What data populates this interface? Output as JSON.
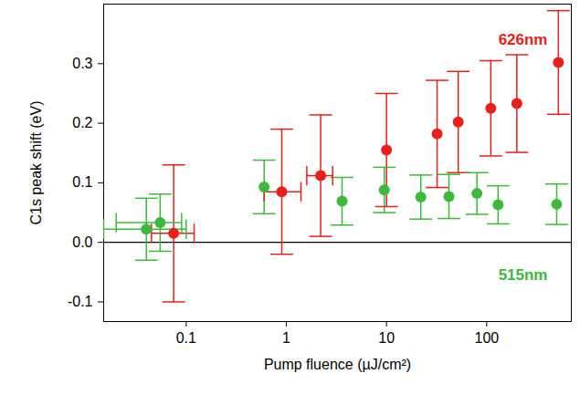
{
  "chart_data": {
    "type": "scatter",
    "x_label": "Pump fluence (µJ/cm²)",
    "y_label": "C1s peak shift (eV)",
    "log": "x",
    "xlim": [
      0.015,
      700
    ],
    "xticks": [
      0.1,
      1,
      10,
      100
    ],
    "ylim": [
      -0.133,
      0.4
    ],
    "yticks": [
      -0.1,
      {
        "value": 0,
        "label": "0.0"
      },
      0.1,
      0.2,
      0.3
    ],
    "series": [
      {
        "name": "626nm",
        "color": "#e8201c",
        "marker": "circle",
        "x": [
          0.075,
          0.9,
          2.2,
          10,
          32,
          52,
          110,
          200,
          520
        ],
        "values": [
          0.015,
          0.085,
          0.112,
          0.155,
          0.182,
          0.202,
          0.225,
          0.233,
          0.302
        ],
        "yerr": [
          0.115,
          0.105,
          0.102,
          0.095,
          0.09,
          0.085,
          0.08,
          0.082,
          0.087
        ],
        "xerr": [
          [
            0.045,
            0.12
          ],
          [
            0.6,
            1.4
          ],
          [
            1.6,
            2.9
          ],
          null,
          null,
          null,
          null,
          null,
          null
        ]
      },
      {
        "name": "515nm",
        "color": "#3cb83c",
        "marker": "circle",
        "x": [
          0.04,
          0.055,
          0.6,
          3.6,
          9.5,
          22,
          42,
          80,
          130,
          500
        ],
        "values": [
          0.022,
          0.033,
          0.093,
          0.069,
          0.088,
          0.076,
          0.077,
          0.082,
          0.063,
          0.064
        ],
        "yerr": [
          0.052,
          0.048,
          0.045,
          0.04,
          0.038,
          0.037,
          0.037,
          0.035,
          0.032,
          0.034
        ],
        "xerr": [
          [
            0.015,
            0.1
          ],
          [
            0.02,
            0.09
          ],
          null,
          null,
          null,
          null,
          null,
          null,
          null,
          null
        ]
      }
    ]
  }
}
